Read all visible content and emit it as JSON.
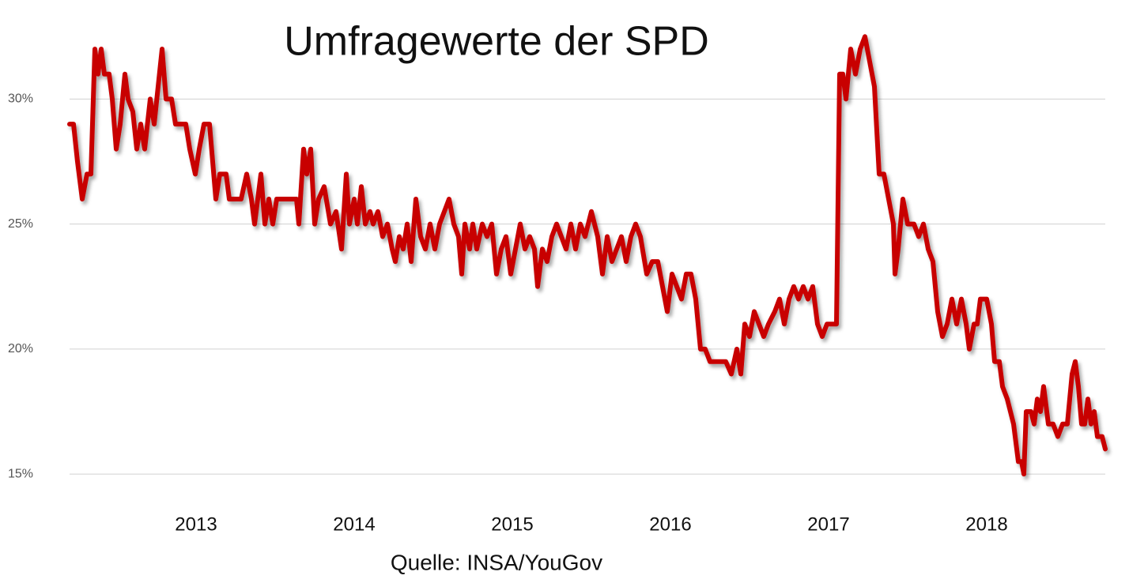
{
  "chart_data": {
    "type": "line",
    "title": "Umfragewerte der SPD",
    "source": "Quelle: INSA/YouGov",
    "color": "#c80000",
    "grid": true,
    "xlim": [
      2012.2,
      2018.75
    ],
    "xticks": [
      2013,
      2014,
      2015,
      2016,
      2017,
      2018
    ],
    "ylim": [
      14.37,
      32.7
    ],
    "yticks": [
      {
        "value": 15,
        "label": "15%"
      },
      {
        "value": 20,
        "label": "20%"
      },
      {
        "value": 25,
        "label": "25%"
      },
      {
        "value": 30,
        "label": "30%"
      }
    ],
    "x": [
      2012.2,
      2012.225,
      2012.25,
      2012.28,
      2012.31,
      2012.335,
      2012.36,
      2012.38,
      2012.4,
      2012.42,
      2012.45,
      2012.47,
      2012.495,
      2012.52,
      2012.55,
      2012.57,
      2012.6,
      2012.625,
      2012.65,
      2012.675,
      2012.71,
      2012.735,
      2012.76,
      2012.785,
      2012.81,
      2012.845,
      2012.87,
      2012.935,
      2012.96,
      2012.995,
      2013.02,
      2013.05,
      2013.085,
      2013.125,
      2013.15,
      2013.19,
      2013.21,
      2013.285,
      2013.32,
      2013.35,
      2013.37,
      2013.41,
      2013.435,
      2013.46,
      2013.485,
      2013.51,
      2013.61,
      2013.635,
      2013.65,
      2013.68,
      2013.7,
      2013.725,
      2013.75,
      2013.775,
      2013.81,
      2013.85,
      2013.885,
      2013.92,
      2013.95,
      2013.97,
      2014.0,
      2014.02,
      2014.045,
      2014.07,
      2014.1,
      2014.12,
      2014.15,
      2014.18,
      2014.21,
      2014.24,
      2014.26,
      2014.285,
      2014.31,
      2014.335,
      2014.36,
      2014.39,
      2014.42,
      2014.45,
      2014.48,
      2014.51,
      2014.54,
      2014.57,
      2014.6,
      2014.63,
      2014.66,
      2014.68,
      2014.7,
      2014.73,
      2014.75,
      2014.775,
      2014.81,
      2014.84,
      2014.87,
      2014.9,
      2014.93,
      2014.96,
      2014.99,
      2015.02,
      2015.05,
      2015.08,
      2015.11,
      2015.14,
      2015.16,
      2015.19,
      2015.22,
      2015.25,
      2015.28,
      2015.31,
      2015.34,
      2015.37,
      2015.4,
      2015.43,
      2015.46,
      2015.5,
      2015.54,
      2015.57,
      2015.6,
      2015.63,
      2015.66,
      2015.69,
      2015.72,
      2015.75,
      2015.78,
      2015.81,
      2015.85,
      2015.885,
      2015.92,
      2015.95,
      2015.98,
      2016.01,
      2016.04,
      2016.07,
      2016.1,
      2016.13,
      2016.16,
      2016.19,
      2016.22,
      2016.25,
      2016.31,
      2016.35,
      2016.385,
      2016.42,
      2016.445,
      2016.47,
      2016.5,
      2016.53,
      2016.56,
      2016.59,
      2016.62,
      2016.66,
      2016.69,
      2016.72,
      2016.75,
      2016.78,
      2016.81,
      2016.84,
      2016.87,
      2016.9,
      2016.93,
      2016.96,
      2016.99,
      2017.03,
      2017.05,
      2017.07,
      2017.09,
      2017.11,
      2017.14,
      2017.17,
      2017.2,
      2017.23,
      2017.26,
      2017.29,
      2017.32,
      2017.35,
      2017.38,
      2017.41,
      2017.42,
      2017.44,
      2017.47,
      2017.5,
      2017.54,
      2017.57,
      2017.6,
      2017.63,
      2017.66,
      2017.69,
      2017.72,
      2017.75,
      2017.78,
      2017.81,
      2017.84,
      2017.87,
      2017.89,
      2017.92,
      2017.94,
      2017.96,
      2018.0,
      2018.03,
      2018.05,
      2018.08,
      2018.1,
      2018.13,
      2018.17,
      2018.2,
      2018.22,
      2018.235,
      2018.25,
      2018.28,
      2018.3,
      2018.32,
      2018.34,
      2018.36,
      2018.39,
      2018.42,
      2018.45,
      2018.48,
      2018.51,
      2018.54,
      2018.56,
      2018.58,
      2018.6,
      2018.62,
      2018.64,
      2018.66,
      2018.68,
      2018.7,
      2018.73,
      2018.75
    ],
    "values": [
      29,
      29,
      27.5,
      26,
      27,
      27,
      32,
      31,
      32,
      31,
      31,
      30,
      28,
      29,
      31,
      30,
      29.5,
      28,
      29,
      28,
      30,
      29,
      30.5,
      32,
      30,
      30,
      29,
      29,
      28,
      27,
      28,
      29,
      29,
      26,
      27,
      27,
      26,
      26,
      27,
      26,
      25,
      27,
      25,
      26,
      25,
      26,
      26,
      26,
      25,
      28,
      27,
      28,
      25,
      26,
      26.5,
      25,
      25.5,
      24,
      27,
      25,
      26,
      25,
      26.5,
      25,
      25.5,
      25,
      25.5,
      24.5,
      25,
      24,
      23.5,
      24.5,
      24,
      25,
      23.5,
      26,
      24.5,
      24,
      25,
      24,
      25,
      25.5,
      26,
      25,
      24.5,
      23,
      25,
      24,
      25,
      24,
      25,
      24.5,
      25,
      23,
      24,
      24.5,
      23,
      24,
      25,
      24,
      24.5,
      24,
      22.5,
      24,
      23.5,
      24.5,
      25,
      24.5,
      24,
      25,
      24,
      25,
      24.5,
      25.5,
      24.5,
      23,
      24.5,
      23.5,
      24,
      24.5,
      23.5,
      24.5,
      25,
      24.5,
      23,
      23.5,
      23.5,
      22.5,
      21.5,
      23,
      22.5,
      22,
      23,
      23,
      22,
      20,
      20,
      19.5,
      19.5,
      19.5,
      19,
      20,
      19,
      21,
      20.5,
      21.5,
      21,
      20.5,
      21,
      21.5,
      22,
      21,
      22,
      22.5,
      22,
      22.5,
      22,
      22.5,
      21,
      20.5,
      21,
      21,
      21,
      31,
      31,
      30,
      32,
      31,
      32,
      32.5,
      31.5,
      30.5,
      27,
      27,
      26,
      25,
      23,
      24,
      26,
      25,
      25,
      24.5,
      25,
      24,
      23.5,
      21.5,
      20.5,
      21,
      22,
      21,
      22,
      21,
      20,
      21,
      21,
      22,
      22,
      21,
      19.5,
      19.5,
      18.5,
      18,
      17,
      15.5,
      15.5,
      15,
      17.5,
      17.5,
      17,
      18,
      17.5,
      18.5,
      17,
      17,
      16.5,
      17,
      17,
      19,
      19.5,
      18.5,
      17,
      17,
      18,
      17,
      17.5,
      16.5,
      16.5,
      16
    ]
  }
}
